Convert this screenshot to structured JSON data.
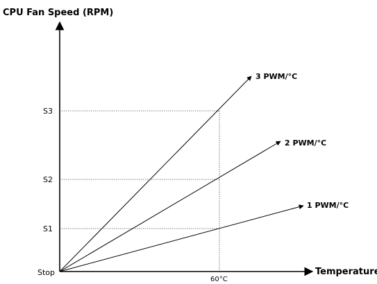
{
  "diagram": {
    "y_axis_title": "CPU Fan Speed (RPM)",
    "x_axis_title": "Temperature",
    "y_ticks": [
      "Stop",
      "S1",
      "S2",
      "S3"
    ],
    "x_tick": "60°C",
    "lines": [
      {
        "label": "1 PWM/°C",
        "value_at_60": "S1"
      },
      {
        "label": "2 PWM/°C",
        "value_at_60": "S2"
      },
      {
        "label": "3 PWM/°C",
        "value_at_60": "S3"
      }
    ],
    "colors": {
      "line": "#000000",
      "guide": "#555555",
      "background": "#ffffff"
    }
  }
}
